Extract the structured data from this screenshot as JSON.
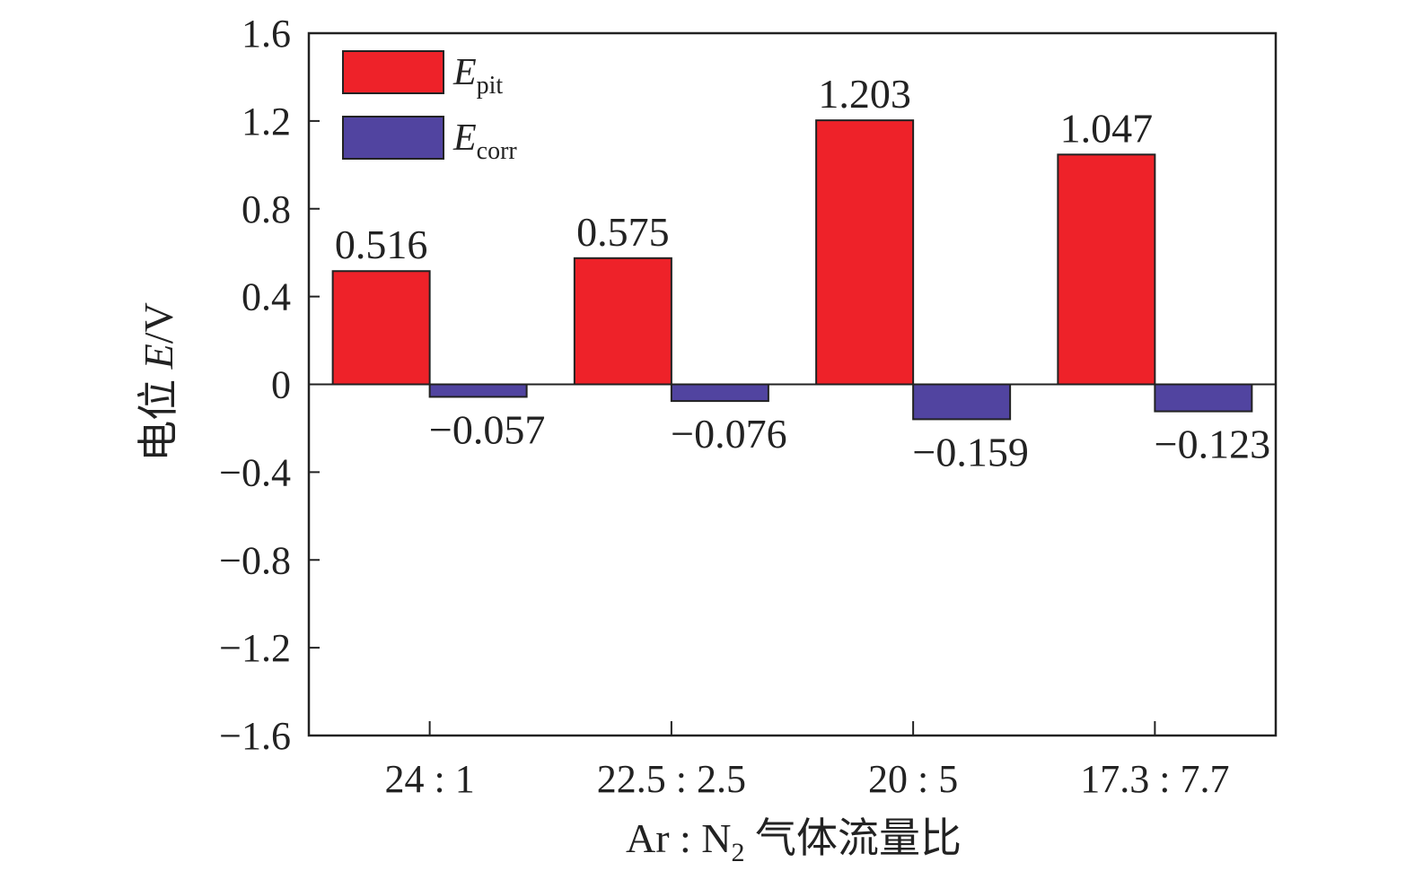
{
  "chart_data": {
    "type": "bar",
    "categories": [
      "24 : 1",
      "22.5 : 2.5",
      "20 : 5",
      "17.3 : 7.7"
    ],
    "series": [
      {
        "name": "E_pit",
        "legend_main": "E",
        "legend_sub": "pit",
        "color": "#ee2229",
        "values": [
          0.516,
          0.575,
          1.203,
          1.047
        ],
        "labels": [
          "0.516",
          "0.575",
          "1.203",
          "1.047"
        ]
      },
      {
        "name": "E_corr",
        "legend_main": "E",
        "legend_sub": "corr",
        "color": "#5144a0",
        "values": [
          -0.057,
          -0.076,
          -0.159,
          -0.123
        ],
        "labels": [
          "−0.057",
          "−0.076",
          "−0.159",
          "−0.123"
        ]
      }
    ],
    "ylim": [
      -1.6,
      1.6
    ],
    "yticks": [
      1.6,
      1.2,
      0.8,
      0.4,
      0,
      -0.4,
      -0.8,
      -1.2,
      -1.6
    ],
    "ytick_labels": [
      "1.6",
      "1.2",
      "0.8",
      "0.4",
      "0",
      "−0.4",
      "−0.8",
      "−1.2",
      "−1.6"
    ],
    "ylabel_prefix": "电位 ",
    "ylabel_var": "E",
    "ylabel_unit": "/V",
    "xlabel_prefix": "Ar : N",
    "xlabel_sub": "2",
    "xlabel_suffix": " 气体流量比",
    "legend_position": "top-left",
    "grid": false
  }
}
